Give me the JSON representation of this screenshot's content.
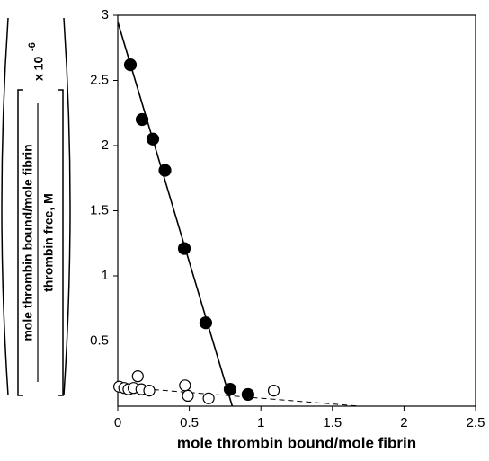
{
  "chart_data": {
    "type": "scatter",
    "xlabel": "mole thrombin bound/mole fibrin",
    "ylabel": {
      "numerator": "mole thrombin bound/mole fibrin",
      "denominator": "thrombin free, M",
      "multiplier": "x 10",
      "exponent": "-6"
    },
    "xlim": [
      0,
      2.5
    ],
    "xticks": [
      0,
      0.5,
      1,
      1.5,
      2,
      2.5
    ],
    "ylim": [
      0,
      3
    ],
    "yticks": [
      0.5,
      1,
      1.5,
      2,
      2.5,
      3
    ],
    "series": [
      {
        "mode": "markers",
        "marker": "filled",
        "color": "#000000",
        "x": [
          0.088,
          0.17,
          0.245,
          0.33,
          0.465,
          0.615,
          0.785,
          0.91
        ],
        "values": [
          2.62,
          2.2,
          2.05,
          1.81,
          1.21,
          0.64,
          0.13,
          0.09
        ]
      },
      {
        "mode": "markers",
        "marker": "open",
        "color": "#000000",
        "x": [
          0.01,
          0.045,
          0.075,
          0.11,
          0.14,
          0.165,
          0.22,
          0.47,
          0.49,
          0.635,
          1.09
        ],
        "values": [
          0.15,
          0.14,
          0.13,
          0.14,
          0.23,
          0.13,
          0.12,
          0.16,
          0.08,
          0.06,
          0.12
        ]
      },
      {
        "mode": "line",
        "dash": false,
        "color": "#000000",
        "x": [
          0,
          0.8
        ],
        "values": [
          2.95,
          0
        ]
      },
      {
        "mode": "line",
        "dash": true,
        "color": "#000000",
        "x": [
          0,
          1.69
        ],
        "values": [
          0.15,
          0
        ]
      }
    ]
  }
}
